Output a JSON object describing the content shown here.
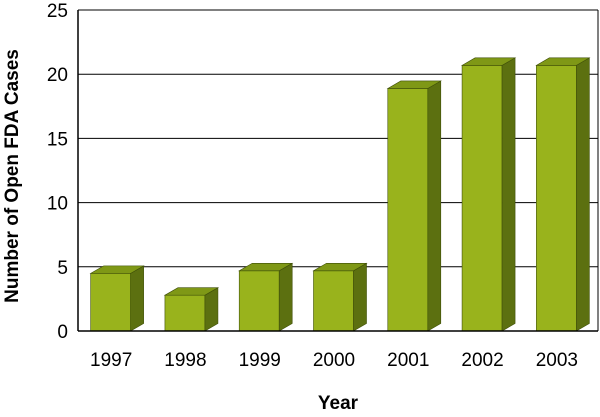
{
  "chart_data": {
    "type": "bar",
    "categories": [
      "1997",
      "1998",
      "1999",
      "2000",
      "2001",
      "2002",
      "2003"
    ],
    "values": [
      4.8,
      3.1,
      5.0,
      5.0,
      19.2,
      21.0,
      21.0
    ],
    "title": "",
    "xlabel": "Year",
    "ylabel": "Number of Open FDA Cases",
    "ylim": [
      0,
      25
    ],
    "yticks": [
      "0",
      "5",
      "10",
      "15",
      "20",
      "25"
    ],
    "grid": true,
    "legend": "none",
    "colors": {
      "bar_front": "#99b31c",
      "bar_side": "#5c7010",
      "bar_top": "#7f9816",
      "bar_outline": "#3f4f08",
      "grid": "#000000",
      "axis": "#000000"
    }
  }
}
